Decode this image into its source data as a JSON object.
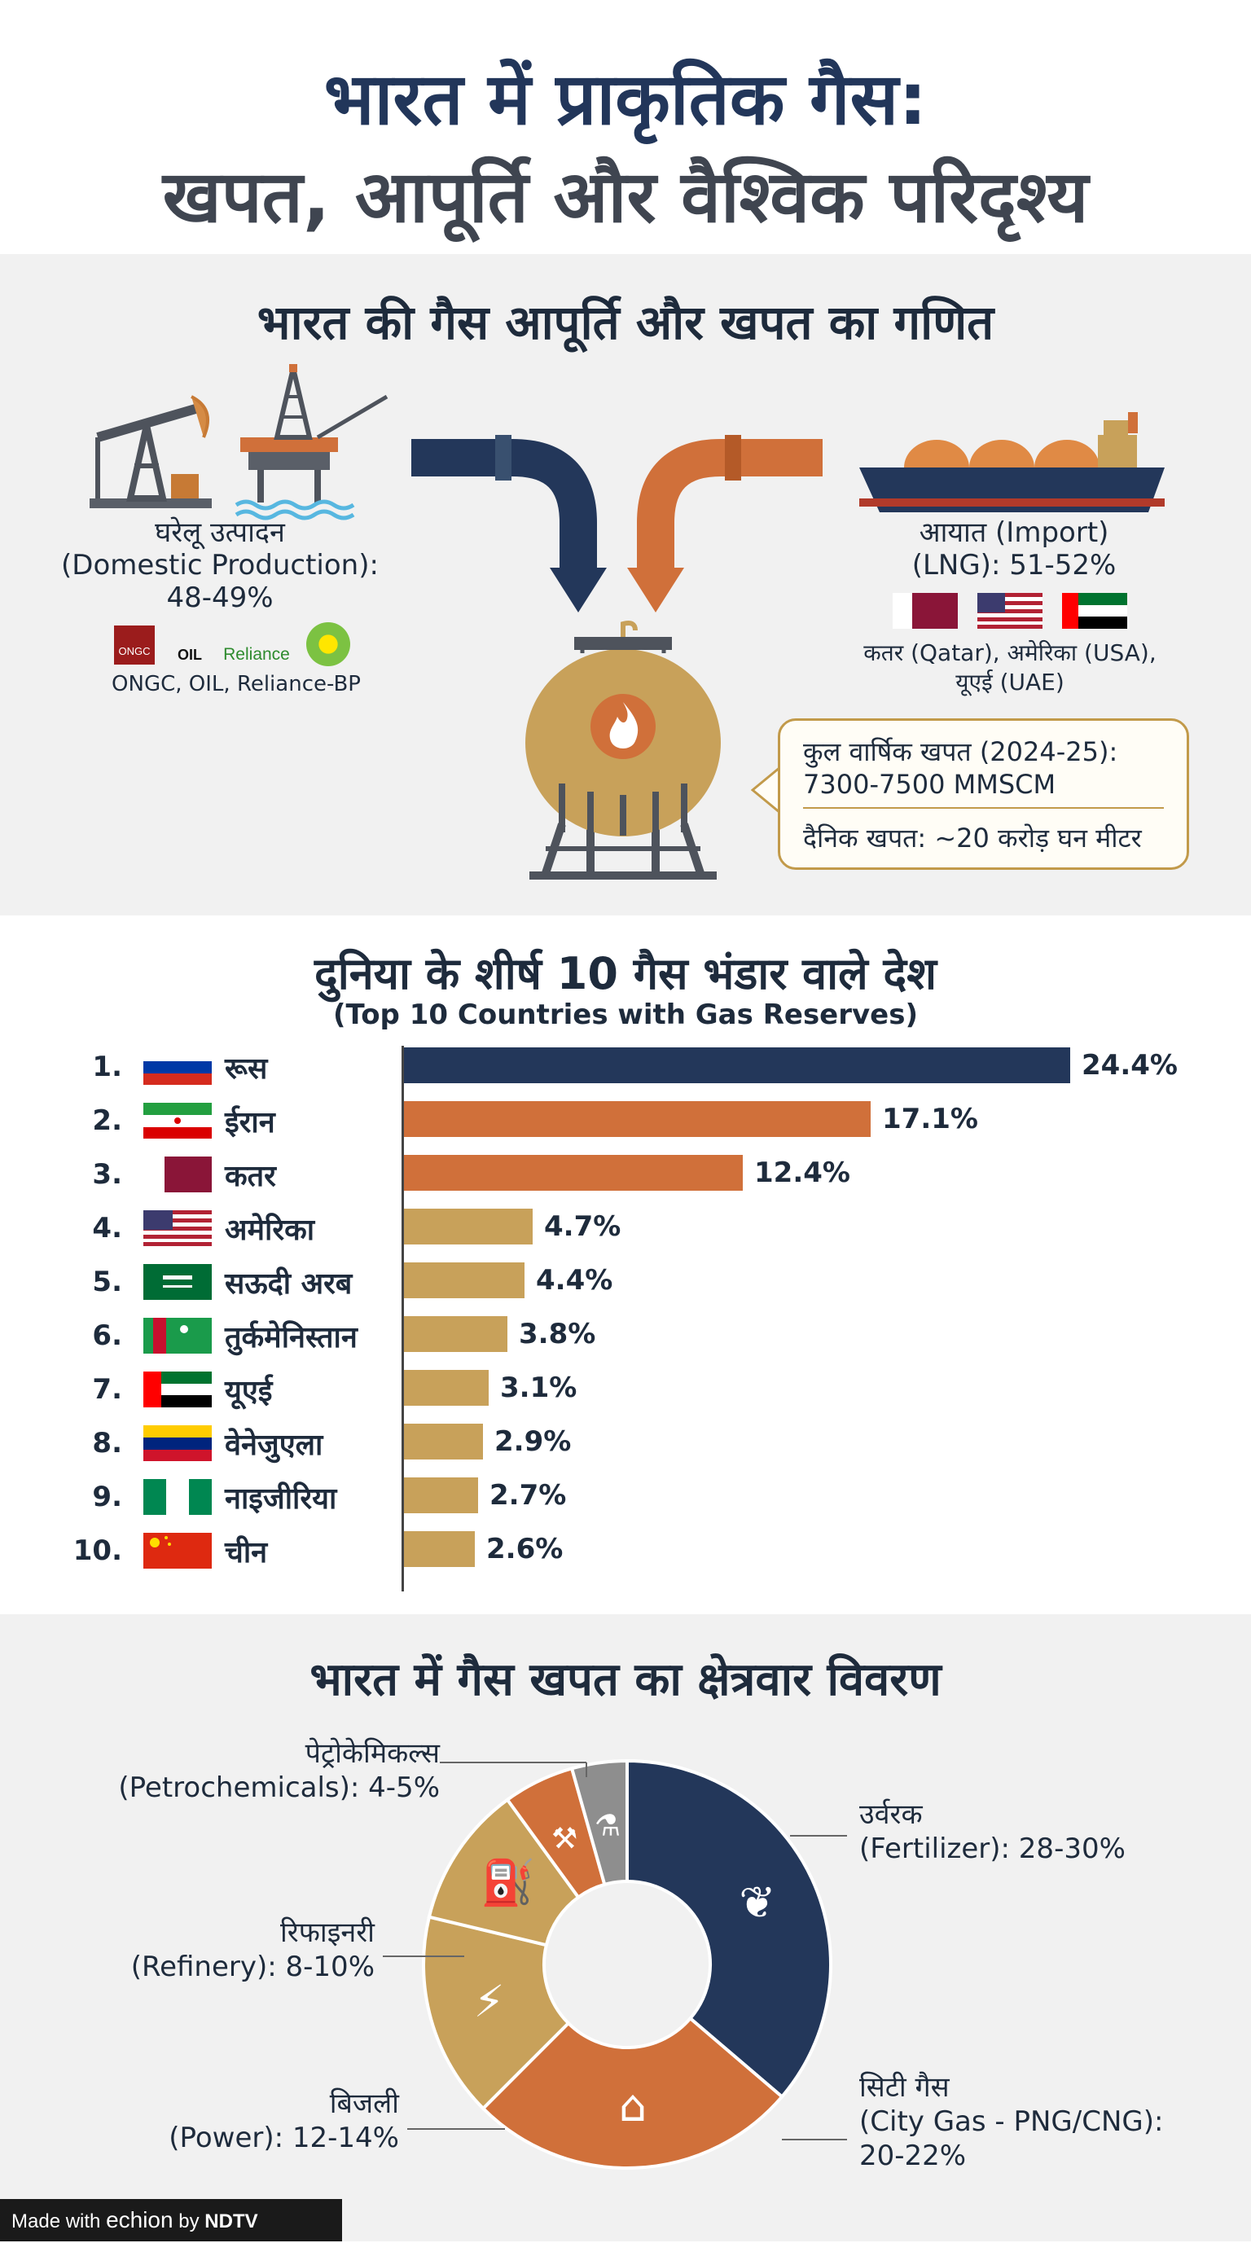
{
  "header": {
    "title_line1": "भारत में प्राकृतिक गैस:",
    "title_line2": "खपत, आपूर्ति और वैश्विक परिदृश्य"
  },
  "supply": {
    "title": "भारत की गैस आपूर्ति और खपत का गणित",
    "domestic": {
      "label_line1": "घरेलू उत्पादन",
      "label_line2": "(Domestic Production):",
      "value": "48-49%",
      "companies": "ONGC, OIL, Reliance-BP",
      "logos": [
        "ONGC",
        "OIL",
        "Reliance",
        "bp"
      ]
    },
    "import": {
      "label_line1": "आयात (Import)",
      "label_line2": "(LNG): 51-52%",
      "countries_line1": "कतर (Qatar), अमेरिका (USA),",
      "countries_line2": "यूएई (UAE)"
    },
    "consumption": {
      "line1": "कुल वार्षिक खपत (2024-25):",
      "line2": "7300-7500 MMSCM",
      "line3": "दैनिक खपत: ~20 करोड़ घन मीटर"
    },
    "colors": {
      "navy": "#23375a",
      "orange": "#d0703a",
      "gold": "#c8a15a",
      "grey": "#666666"
    }
  },
  "reserves": {
    "title": "दुनिया के शीर्ष 10 गैस भंडार वाले देश",
    "subtitle": "(Top 10 Countries with Gas Reserves)"
  },
  "chart_data": [
    {
      "type": "bar",
      "orientation": "horizontal",
      "title": "दुनिया के शीर्ष 10 गैस भंडार वाले देश",
      "subtitle": "(Top 10 Countries with Gas Reserves)",
      "ranks": [
        "1.",
        "2.",
        "3.",
        "4.",
        "5.",
        "6.",
        "7.",
        "8.",
        "9.",
        "10."
      ],
      "categories": [
        "रूस",
        "ईरान",
        "कतर",
        "अमेरिका",
        "सऊदी अरब",
        "तुर्कमेनिस्तान",
        "यूएई",
        "वेनेजुएला",
        "नाइजीरिया",
        "चीन"
      ],
      "values": [
        24.4,
        17.1,
        12.4,
        4.7,
        4.4,
        3.8,
        3.1,
        2.9,
        2.7,
        2.6
      ],
      "value_labels": [
        "24.4%",
        "17.1%",
        "12.4%",
        "4.7%",
        "4.4%",
        "3.8%",
        "3.1%",
        "2.9%",
        "2.7%",
        "2.6%"
      ],
      "bar_colors": [
        "#23375a",
        "#d0703a",
        "#d0703a",
        "#c8a15a",
        "#c8a15a",
        "#c8a15a",
        "#c8a15a",
        "#c8a15a",
        "#c8a15a",
        "#c8a15a"
      ],
      "flags": [
        "russia",
        "iran",
        "qatar",
        "usa",
        "saudi-arabia",
        "turkmenistan",
        "uae",
        "venezuela",
        "nigeria",
        "china"
      ],
      "xlim": [
        0,
        24.4
      ],
      "grid": false
    },
    {
      "type": "pie",
      "style": "donut",
      "title": "भारत में गैस खपत का क्षेत्रवार विवरण",
      "slices": [
        {
          "label_line1": "उर्वरक",
          "label_line2": "(Fertilizer): 28-30%",
          "value": 29,
          "color": "#23375a",
          "icon": "sprout-icon"
        },
        {
          "label_line1": "सिटी गैस",
          "label_line2": "(City Gas - PNG/CNG):",
          "label_line3": "20-22%",
          "value": 21,
          "color": "#d0703a",
          "icon": "house-car-icon"
        },
        {
          "label_line1": "बिजली",
          "label_line2": "(Power): 12-14%",
          "value": 13,
          "color": "#c8a15a",
          "icon": "power-plant-icon"
        },
        {
          "label_line1": "रिफाइनरी",
          "label_line2": "(Refinery): 8-10%",
          "value": 9,
          "color": "#c8a15a",
          "icon": "refinery-icon"
        },
        {
          "label_line1": "पेट्रोकेमिकल्स",
          "label_line2": "(Petrochemicals): 4-5%",
          "value": 4.5,
          "color": "#d0703a",
          "icon": "factory-icon"
        },
        {
          "label_line1": "",
          "label_line2": "",
          "value": 3.5,
          "color": "#8e8e8e",
          "icon": "flask-icon"
        }
      ]
    }
  ],
  "sector": {
    "title": "भारत में गैस खपत का क्षेत्रवार विवरण"
  },
  "footer": {
    "made_with": "Made with",
    "brand": "echion",
    "by": "by",
    "ndtv": "NDTV"
  }
}
